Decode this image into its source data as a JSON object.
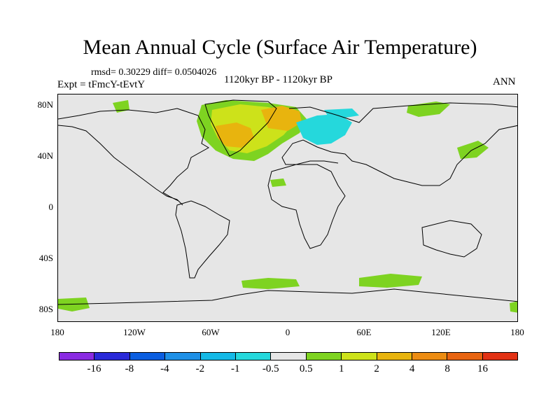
{
  "title": "Mean Annual Cycle (Surface Air Temperature)",
  "stats": "rmsd= 0.30229 diff= 0.0504026",
  "experiment": "Expt = tFmcY-tEvtY",
  "period": "1120kyr BP - 1120kyr BP",
  "season": "ANN",
  "lat_ticks": [
    "80N",
    "40N",
    "0",
    "40S",
    "80S"
  ],
  "lon_ticks": [
    "180",
    "120W",
    "60W",
    "0",
    "60E",
    "120E",
    "180"
  ],
  "colorbar": {
    "colors": [
      "#8a2be2",
      "#2a2ad8",
      "#0b5ee0",
      "#1e90e6",
      "#14b9e6",
      "#25d8dc",
      "#e6e6e6",
      "#7ed321",
      "#cde21a",
      "#e8b40e",
      "#ec8c12",
      "#e86410",
      "#e23214"
    ],
    "labels": [
      "-16",
      "-8",
      "-4",
      "-2",
      "-1",
      "-0.5",
      "0.5",
      "1",
      "2",
      "4",
      "8",
      "16"
    ]
  },
  "palette": {
    "green": "#7ed321",
    "yellow": "#cde21a",
    "orange": "#e8b40e",
    "cyan": "#25d8dc",
    "background": "#e6e6e6"
  }
}
